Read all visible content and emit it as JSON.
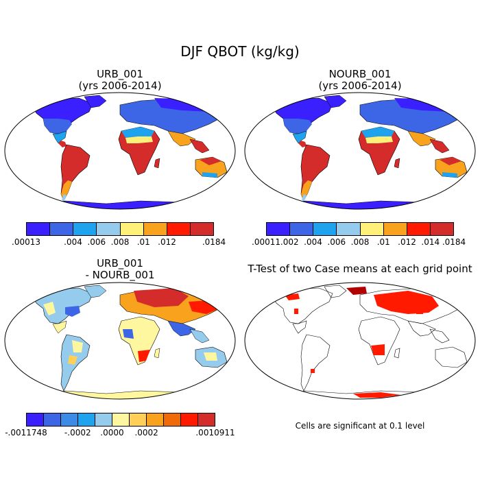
{
  "figure": {
    "title": "DJF QBOT (kg/kg)"
  },
  "panels": [
    {
      "id": "urb",
      "title_line1": "URB_001",
      "title_line2": "(yrs 2006-2014)",
      "colorbar": {
        "colors": [
          "#3a1fff",
          "#3c66e6",
          "#1fa3ef",
          "#95cbec",
          "#fff07a",
          "#f9a21d",
          "#ff1a00",
          "#d42b2b"
        ],
        "labels": [
          ".00013",
          ".004",
          ".006",
          ".008",
          ".01",
          ".012",
          ".0184"
        ]
      }
    },
    {
      "id": "nourb",
      "title_line1": "NOURB_001",
      "title_line2": "(yrs 2006-2014)",
      "colorbar": {
        "colors": [
          "#3a1fff",
          "#3c66e6",
          "#1fa3ef",
          "#95cbec",
          "#fff07a",
          "#f9a21d",
          "#ff1a00",
          "#d42b2b"
        ],
        "labels": [
          ".00011",
          ".002",
          ".004",
          ".006",
          ".008",
          ".01",
          ".012",
          ".014",
          ".0184"
        ]
      }
    },
    {
      "id": "diff",
      "title_line1": "URB_001",
      "title_line2": "- NOURB_001",
      "colorbar": {
        "colors": [
          "#3a1fff",
          "#3c66e6",
          "#3c8be6",
          "#1fa3ef",
          "#95cbec",
          "#fff7a0",
          "#ffd055",
          "#f9a21d",
          "#f06a0a",
          "#ff1a00",
          "#d42b2b"
        ],
        "labels": [
          "-.0011748",
          "-.0002",
          ".0000",
          ".0002",
          ".0010911"
        ]
      }
    },
    {
      "id": "ttest",
      "title_line1": "T-Test of two Case means at each grid point",
      "note": "Cells are significant at 0.1 level"
    }
  ]
}
